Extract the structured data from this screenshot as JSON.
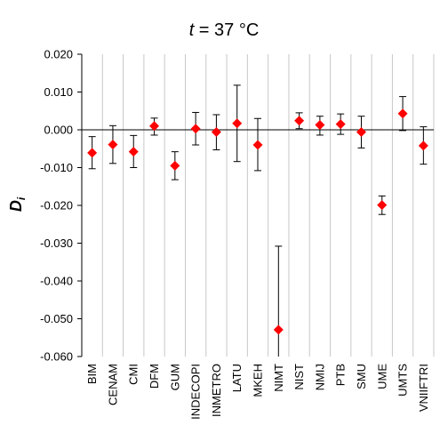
{
  "chart_data": {
    "type": "scatter",
    "title_prefix": "t",
    "title_suffix": " = 37 °C",
    "ylabel_main": "D",
    "ylabel_sub": "i",
    "xlabel": "",
    "ylim": [
      -0.06,
      0.02
    ],
    "yticks": [
      "0.020",
      "0.010",
      "0.000",
      "-0.010",
      "-0.020",
      "-0.030",
      "-0.040",
      "-0.050",
      "-0.060"
    ],
    "ytick_values": [
      0.02,
      0.01,
      0.0,
      -0.01,
      -0.02,
      -0.03,
      -0.04,
      -0.05,
      -0.06
    ],
    "grid": "vertical",
    "marker_color": "#ff0000",
    "categories": [
      "BIM",
      "CENAM",
      "CMI",
      "DFM",
      "GUM",
      "INDECOPI",
      "INMETRO",
      "LATU",
      "MKEH",
      "NIMT",
      "NIST",
      "NMIJ",
      "PTB",
      "SMU",
      "UME",
      "UMTS",
      "VNIIFTRI"
    ],
    "values": [
      -0.0061,
      -0.0039,
      -0.0058,
      0.001,
      -0.0095,
      0.0003,
      -0.0006,
      0.0017,
      -0.004,
      -0.0529,
      0.0024,
      0.0013,
      0.0015,
      -0.0006,
      -0.0199,
      0.0043,
      -0.0042
    ],
    "err_low": [
      -0.0103,
      -0.0089,
      -0.01,
      -0.0014,
      -0.0132,
      -0.004,
      -0.0053,
      -0.0084,
      -0.0108,
      -0.06,
      0.0003,
      -0.0014,
      -0.0012,
      -0.0048,
      -0.0224,
      -0.0002,
      -0.0091
    ],
    "err_high": [
      -0.0018,
      0.0011,
      -0.0015,
      0.0031,
      -0.0058,
      0.0046,
      0.004,
      0.0118,
      0.003,
      -0.0308,
      0.0045,
      0.0036,
      0.0042,
      0.0036,
      -0.0175,
      0.0088,
      0.0008
    ]
  }
}
